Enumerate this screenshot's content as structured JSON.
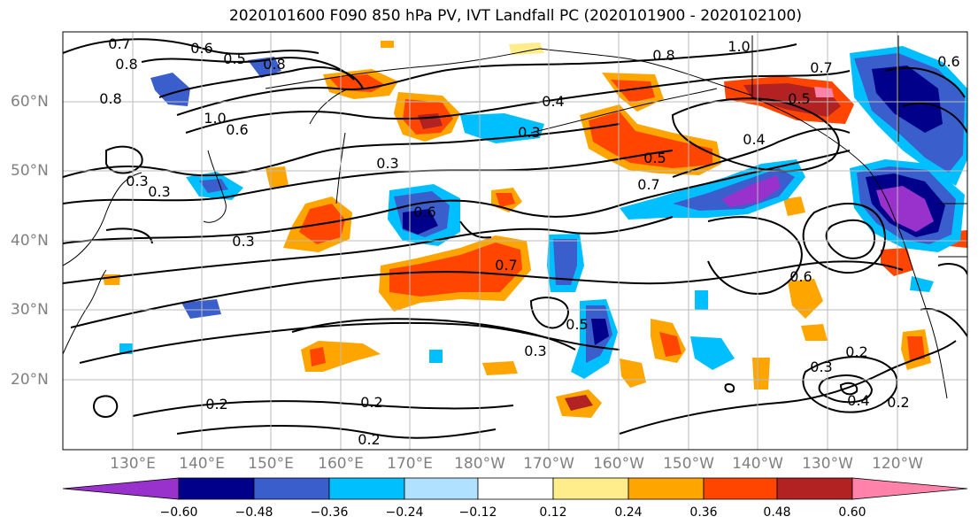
{
  "title": "2020101600 F090 850 hPa PV, IVT Landfall PC (2020101900 - 2020102100)",
  "lat_labels": [
    "60°N",
    "50°N",
    "40°N",
    "30°N",
    "20°N"
  ],
  "lon_labels": [
    "130°E",
    "140°E",
    "150°E",
    "160°E",
    "170°E",
    "180°W",
    "170°W",
    "160°W",
    "150°W",
    "140°W",
    "130°W",
    "120°W"
  ],
  "colorbar": {
    "ticks": [
      "−0.60",
      "−0.48",
      "−0.36",
      "−0.24",
      "−0.12",
      "0.12",
      "0.24",
      "0.36",
      "0.48",
      "0.60"
    ],
    "colors": [
      "#9932cc",
      "#00008b",
      "#3a5fcd",
      "#00bfff",
      "#b0e2ff",
      "#ffffff",
      "#ffec8b",
      "#ffa500",
      "#ff4500",
      "#b22222",
      "#ff82ab"
    ]
  },
  "contour_labels": [
    "0.7",
    "0.8",
    "0.6",
    "0.5",
    "0.8",
    "0.8",
    "1.0",
    "0.6",
    "0.3",
    "0.3",
    "0.3",
    "0.3",
    "0.6",
    "0.7",
    "0.4",
    "0.3",
    "0.8",
    "1.0",
    "0.7",
    "0.6",
    "0.5",
    "0.4",
    "0.5",
    "0.7",
    "0.6",
    "0.5",
    "0.3",
    "0.2",
    "0.2",
    "0.2",
    "0.3",
    "0.2",
    "0.4",
    "0.2"
  ]
}
